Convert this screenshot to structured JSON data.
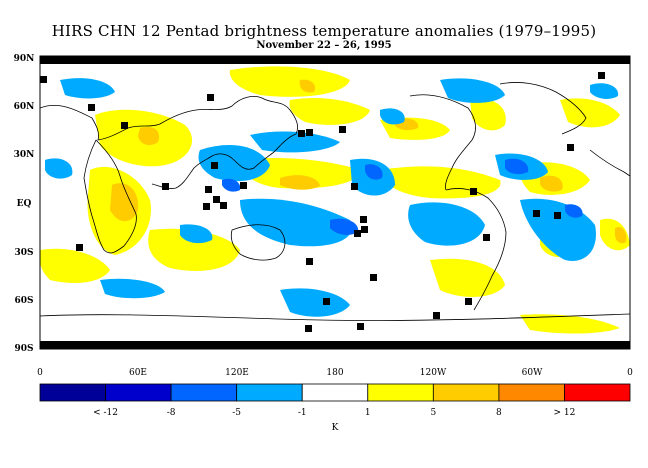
{
  "title": "HIRS CHN 12 Pentad brightness temperature anomalies (1979–1995)",
  "subtitle": "November 22 – 26, 1995",
  "lat_ticks": [
    "90N",
    "60N",
    "30N",
    "EQ",
    "30S",
    "60S",
    "90S"
  ],
  "lon_ticks": [
    "0",
    "60E",
    "120E",
    "180",
    "120W",
    "60W",
    "0"
  ],
  "colorbar": {
    "colors": [
      "#000099",
      "#0000cc",
      "#0066ff",
      "#00aaff",
      "#ffffff",
      "#ffff00",
      "#ffcc00",
      "#ff8800",
      "#ff0000"
    ],
    "labels": [
      "< -12",
      "-8",
      "-5",
      "-1",
      "1",
      "5",
      "8",
      "> 12"
    ],
    "unit": "K"
  }
}
